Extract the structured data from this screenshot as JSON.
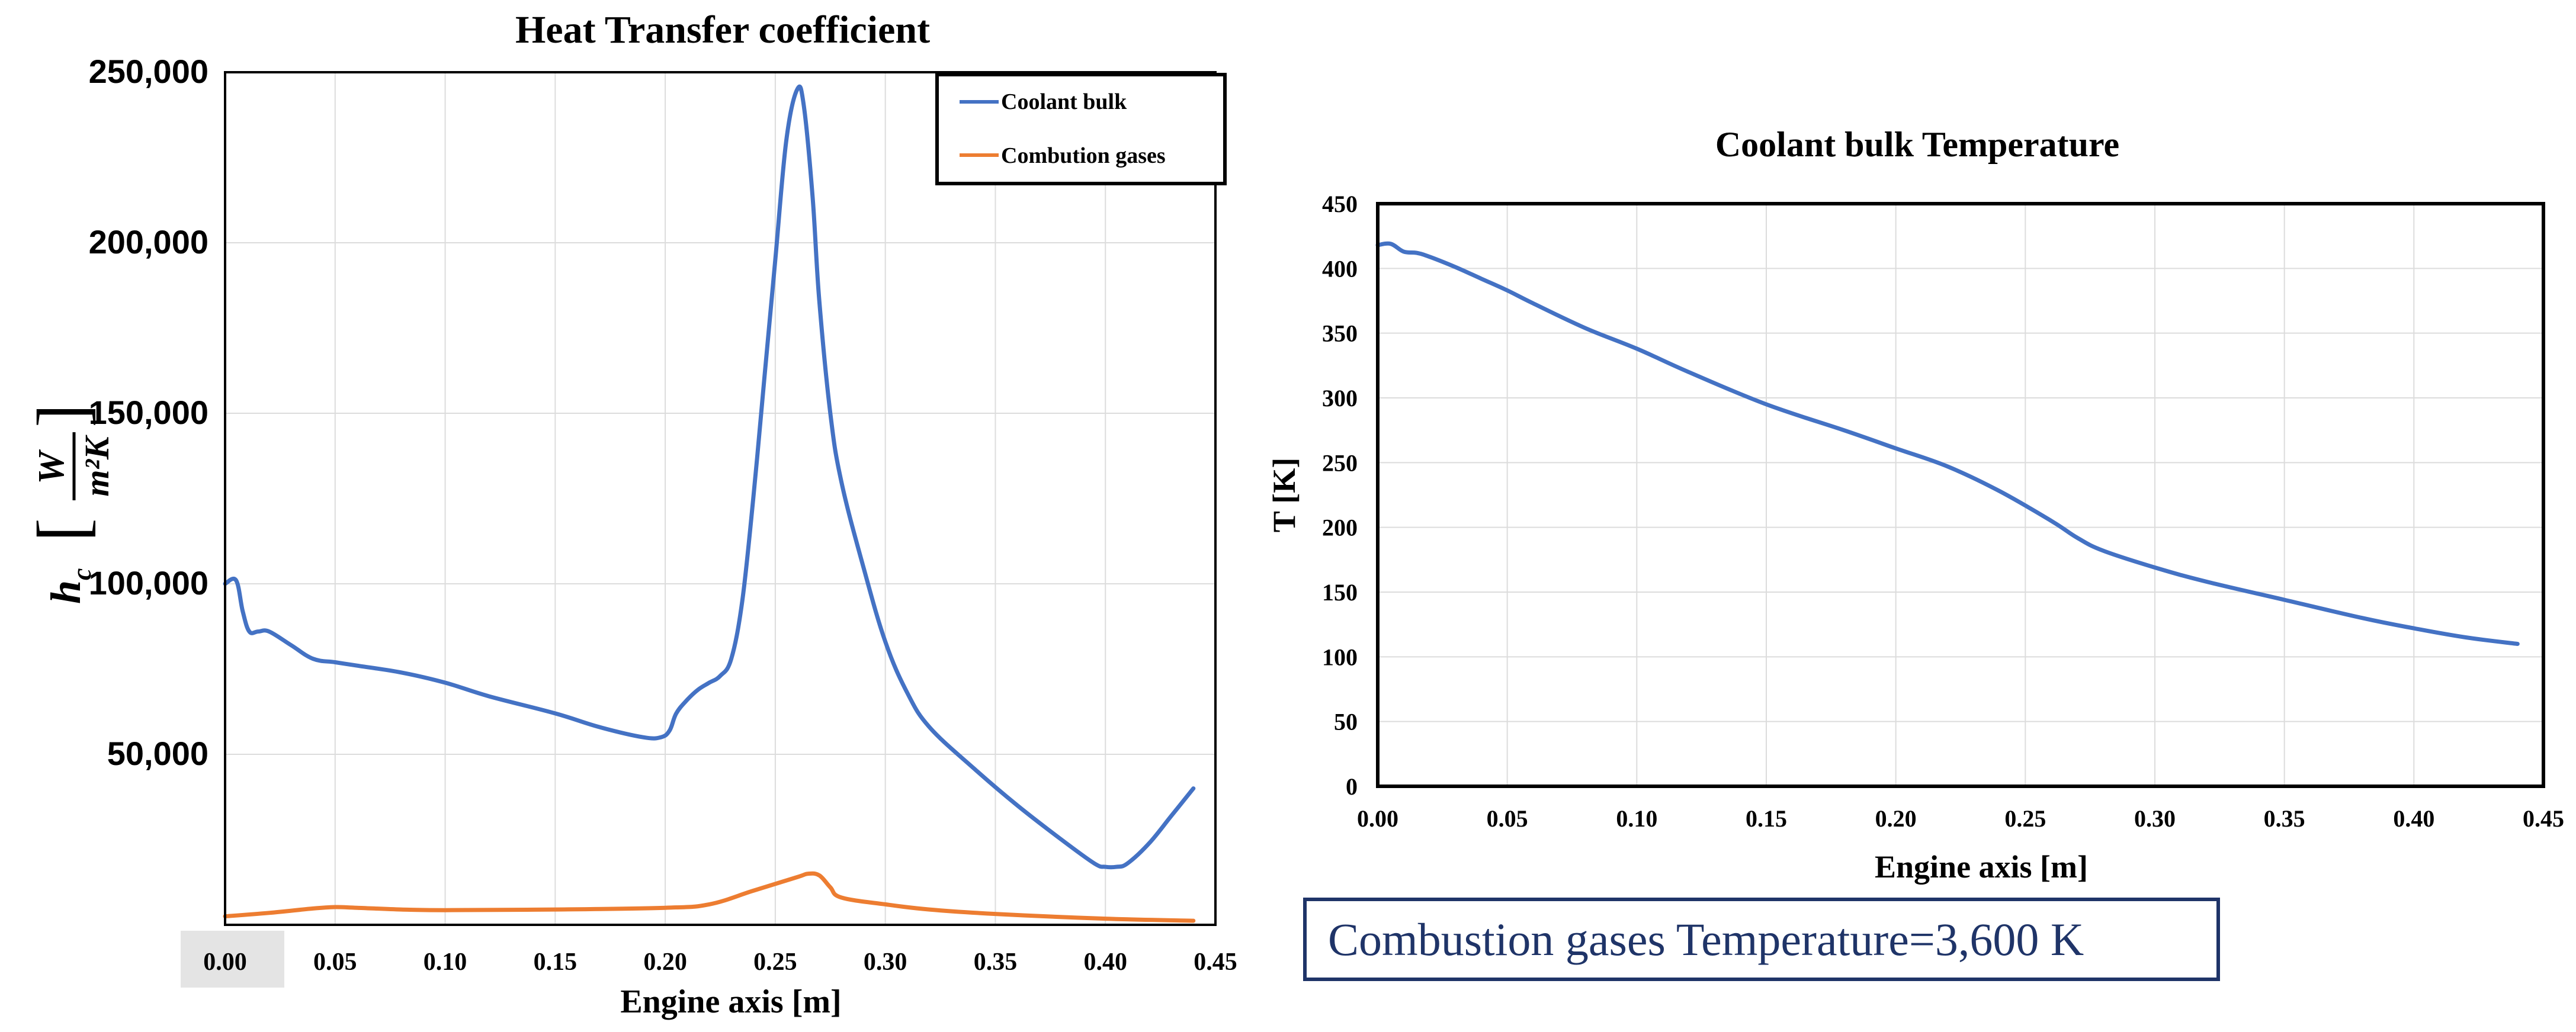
{
  "note": {
    "text": "Combustion gases Temperature=3,600 K"
  },
  "ylabel_fraction_parts": {
    "numerator": "W",
    "denominator": "m²K",
    "symbol": "h",
    "subscript": "c"
  },
  "chart_data": [
    {
      "type": "line",
      "title": "Heat Transfer coefficient",
      "xlabel": "Engine axis [m]",
      "ylabel": "h_c [W/m²K]",
      "xlim": [
        0,
        0.45
      ],
      "ylim": [
        0,
        250000
      ],
      "x_ticks": [
        0.0,
        0.05,
        0.1,
        0.15,
        0.2,
        0.25,
        0.3,
        0.35,
        0.4,
        0.45
      ],
      "x_tick_labels": [
        "0.00",
        "0.05",
        "0.10",
        "0.15",
        "0.20",
        "0.25",
        "0.30",
        "0.35",
        "0.40",
        "0.45"
      ],
      "y_tick_labels": [
        {
          "value": 50000,
          "label": "50,000"
        },
        {
          "value": 100000,
          "label": "100,000"
        },
        {
          "value": 150000,
          "label": "150,000"
        },
        {
          "value": 200000,
          "label": "200,000"
        },
        {
          "value": 250000,
          "label": "250,000"
        }
      ],
      "legend_position": "top-right",
      "series": [
        {
          "name": "Coolant bulk",
          "color": "#4472c4",
          "x": [
            0.0,
            0.005,
            0.008,
            0.011,
            0.015,
            0.02,
            0.03,
            0.04,
            0.05,
            0.06,
            0.08,
            0.1,
            0.12,
            0.15,
            0.17,
            0.19,
            0.198,
            0.202,
            0.205,
            0.21,
            0.215,
            0.22,
            0.225,
            0.23,
            0.235,
            0.24,
            0.245,
            0.25,
            0.255,
            0.26,
            0.263,
            0.267,
            0.27,
            0.275,
            0.28,
            0.29,
            0.3,
            0.31,
            0.32,
            0.34,
            0.36,
            0.38,
            0.395,
            0.4,
            0.405,
            0.41,
            0.42,
            0.43,
            0.44
          ],
          "values": [
            100000,
            101000,
            92000,
            86000,
            86000,
            86000,
            82000,
            78000,
            77000,
            76000,
            74000,
            71000,
            67000,
            62000,
            58000,
            55000,
            55000,
            57000,
            62000,
            66000,
            69000,
            71000,
            73000,
            78000,
            95000,
            125000,
            160000,
            195000,
            230000,
            245000,
            240000,
            213000,
            183000,
            150000,
            130000,
            105000,
            83000,
            68000,
            58000,
            46000,
            35000,
            25000,
            18000,
            17000,
            17000,
            18000,
            24000,
            32000,
            40000
          ]
        },
        {
          "name": "Combution gases",
          "color": "#ed7d31",
          "x": [
            0.0,
            0.02,
            0.04,
            0.05,
            0.06,
            0.08,
            0.1,
            0.15,
            0.2,
            0.22,
            0.24,
            0.26,
            0.265,
            0.27,
            0.275,
            0.28,
            0.3,
            0.32,
            0.35,
            0.4,
            0.44
          ],
          "values": [
            2500,
            3500,
            4800,
            5200,
            5000,
            4500,
            4300,
            4500,
            5000,
            6000,
            10000,
            14000,
            15000,
            14500,
            11000,
            8000,
            6000,
            4500,
            3200,
            1800,
            1200
          ]
        }
      ]
    },
    {
      "type": "line",
      "title": "Coolant bulk Temperature",
      "xlabel": "Engine axis [m]",
      "ylabel": "T  [K]",
      "xlim": [
        0,
        0.45
      ],
      "ylim": [
        0,
        450
      ],
      "x_ticks": [
        0.0,
        0.05,
        0.1,
        0.15,
        0.2,
        0.25,
        0.3,
        0.35,
        0.4,
        0.45
      ],
      "x_tick_labels": [
        "0.00",
        "0.05",
        "0.10",
        "0.15",
        "0.20",
        "0.25",
        "0.30",
        "0.35",
        "0.40",
        "0.45"
      ],
      "y_ticks": [
        0,
        50,
        100,
        150,
        200,
        250,
        300,
        350,
        400,
        450
      ],
      "y_tick_labels": [
        "0",
        "50",
        "100",
        "150",
        "200",
        "250",
        "300",
        "350",
        "400",
        "450"
      ],
      "series": [
        {
          "name": "Coolant bulk",
          "color": "#4472c4",
          "x": [
            0.0,
            0.005,
            0.01,
            0.015,
            0.02,
            0.03,
            0.04,
            0.05,
            0.06,
            0.08,
            0.1,
            0.12,
            0.15,
            0.18,
            0.2,
            0.22,
            0.24,
            0.26,
            0.27,
            0.28,
            0.3,
            0.32,
            0.35,
            0.38,
            0.4,
            0.42,
            0.44
          ],
          "values": [
            418,
            419,
            413,
            412,
            409,
            401,
            392,
            383,
            373,
            354,
            338,
            320,
            295,
            275,
            261,
            247,
            228,
            205,
            192,
            182,
            169,
            158,
            144,
            130,
            122,
            115,
            110
          ]
        }
      ]
    }
  ]
}
